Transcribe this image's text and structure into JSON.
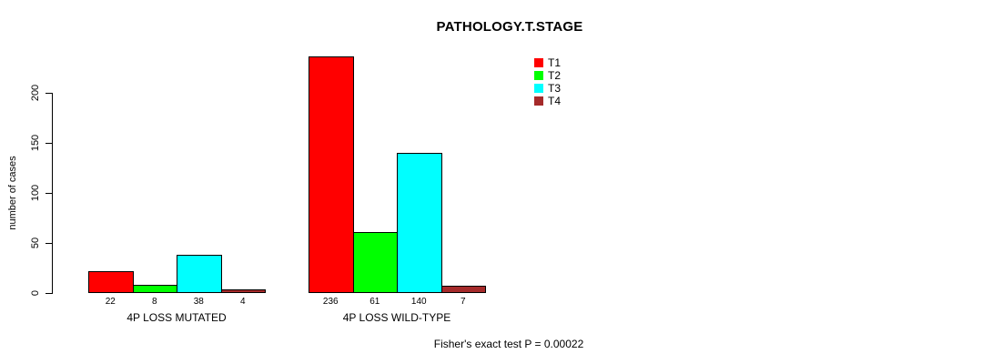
{
  "chart_data": {
    "type": "bar",
    "title": "PATHOLOGY.T.STAGE",
    "ylabel": "number of cases",
    "xlabel": "",
    "ylim": [
      0,
      240
    ],
    "yticks": [
      0,
      50,
      100,
      150,
      200
    ],
    "grid": false,
    "legend_position": "top-right",
    "categories": [
      "4P LOSS MUTATED",
      "4P LOSS WILD-TYPE"
    ],
    "series": [
      {
        "name": "T1",
        "color": "#FF0000",
        "values": [
          22,
          236
        ]
      },
      {
        "name": "T2",
        "color": "#00FF00",
        "values": [
          8,
          61
        ]
      },
      {
        "name": "T3",
        "color": "#00FFFF",
        "values": [
          38,
          140
        ]
      },
      {
        "name": "T4",
        "color": "#A52A2A",
        "values": [
          4,
          7
        ]
      }
    ],
    "bar_value_labels_shown": true,
    "footnote": "Fisher's exact test P = 0.00022"
  }
}
